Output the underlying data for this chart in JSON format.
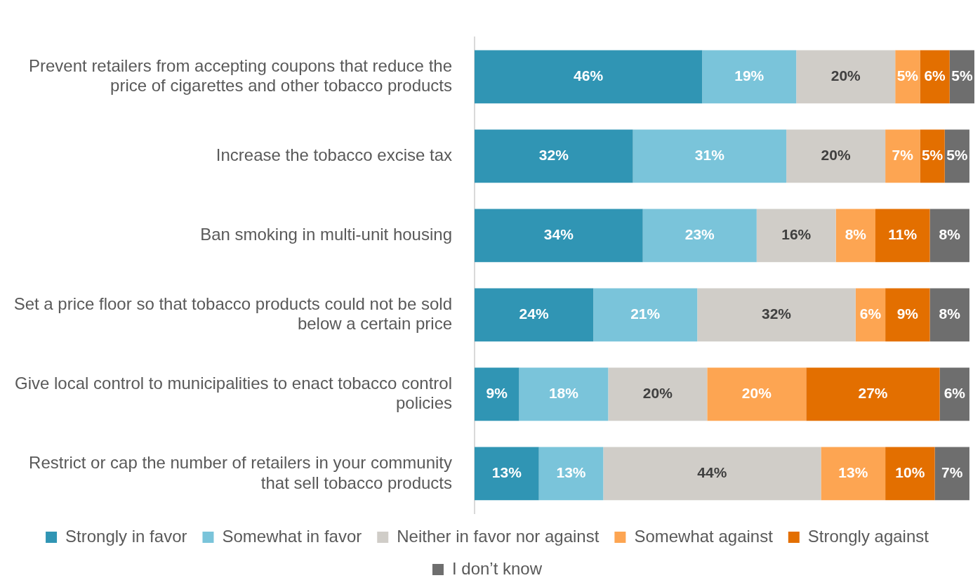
{
  "chart_data": {
    "type": "bar",
    "orientation": "horizontal",
    "stacked": true,
    "tick_labels": "y",
    "legend": "bottom",
    "categories": [
      "Prevent retailers from accepting coupons that reduce the price of cigarettes and other tobacco products",
      "Increase the tobacco excise tax",
      "Ban smoking in multi-unit housing",
      "Set a price floor so that tobacco products could not be sold below a certain price",
      "Give local control to municipalities to enact tobacco control policies",
      "Restrict or cap the number of retailers in your community that sell tobacco products"
    ],
    "series": [
      {
        "name": "Strongly in favor",
        "color": "#3095b4",
        "values": [
          46,
          32,
          34,
          24,
          9,
          13
        ],
        "value_labels": [
          "46%",
          "32%",
          "34%",
          "24%",
          "9%",
          "13%"
        ]
      },
      {
        "name": "Somewhat in favor",
        "color": "#7ac4da",
        "values": [
          19,
          31,
          23,
          21,
          18,
          13
        ],
        "value_labels": [
          "19%",
          "31%",
          "23%",
          "21%",
          "18%",
          "13%"
        ]
      },
      {
        "name": "Neither in favor nor against",
        "color": "#d0cdc8",
        "values": [
          20,
          20,
          16,
          32,
          20,
          44
        ],
        "value_labels": [
          "20%",
          "20%",
          "16%",
          "32%",
          "20%",
          "44%"
        ]
      },
      {
        "name": "Somewhat against",
        "color": "#fda552",
        "values": [
          5,
          7,
          8,
          6,
          20,
          13
        ],
        "value_labels": [
          "5%",
          "7%",
          "8%",
          "6%",
          "20%",
          "13%"
        ]
      },
      {
        "name": "Strongly against",
        "color": "#e36f00",
        "values": [
          6,
          5,
          11,
          9,
          27,
          10
        ],
        "value_labels": [
          "6%",
          "5%",
          "11%",
          "9%",
          "27%",
          "10%"
        ]
      },
      {
        "name": "I don’t know",
        "color": "#6e6e6e",
        "values": [
          5,
          5,
          8,
          8,
          6,
          7
        ],
        "value_labels": [
          "5%",
          "5%",
          "8%",
          "8%",
          "6%",
          "7%"
        ]
      }
    ]
  }
}
